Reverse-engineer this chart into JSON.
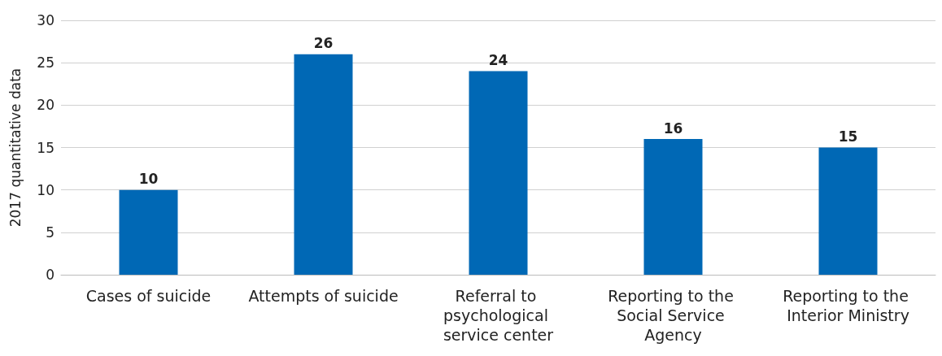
{
  "chart_data": {
    "type": "bar",
    "ylabel": "2017 quantitative data",
    "categories": [
      "Cases of suicide",
      "Attempts of suicide",
      "Referral to psychological service center",
      "Reporting to the Social Service Agency",
      "Reporting to the Interior Ministry"
    ],
    "values": [
      10,
      26,
      24,
      16,
      15
    ],
    "color": "#0068b5",
    "ylim": [
      0,
      30
    ],
    "yticks": [
      0,
      5,
      10,
      15,
      20,
      25,
      30
    ],
    "grid": "y",
    "data_labels": true
  }
}
